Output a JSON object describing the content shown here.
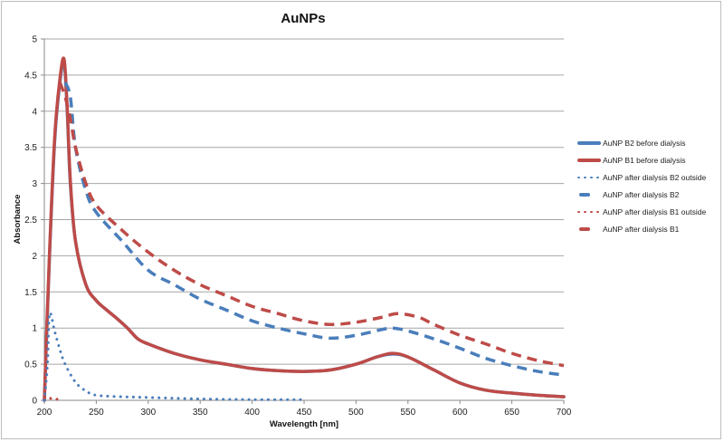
{
  "chart_data": {
    "type": "line",
    "title": "AuNPs",
    "xlabel": "Wavelength [nm]",
    "ylabel": "Absorbance",
    "xlim": [
      200,
      700
    ],
    "ylim": [
      0,
      5
    ],
    "x_ticks": [
      200,
      250,
      300,
      350,
      400,
      450,
      500,
      550,
      600,
      650,
      700
    ],
    "y_ticks": [
      0,
      0.5,
      1,
      1.5,
      2,
      2.5,
      3,
      3.5,
      4,
      4.5,
      5
    ],
    "grid": "horizontal",
    "legend_position": "right",
    "series": [
      {
        "name": "AuNP B2 before dialysis",
        "color": "#4a7ebb",
        "style": "solid",
        "x": [
          200,
          205,
          210,
          215,
          219,
          222,
          225,
          230,
          240,
          250,
          260,
          270,
          280,
          290,
          300,
          325,
          350,
          375,
          400,
          425,
          450,
          475,
          500,
          520,
          535,
          550,
          575,
          600,
          625,
          650,
          675,
          700
        ],
        "y": [
          0,
          2.0,
          3.6,
          4.4,
          4.68,
          4.0,
          3.0,
          2.2,
          1.6,
          1.38,
          1.25,
          1.13,
          1.0,
          0.85,
          0.78,
          0.65,
          0.56,
          0.5,
          0.44,
          0.41,
          0.4,
          0.42,
          0.5,
          0.6,
          0.64,
          0.6,
          0.42,
          0.24,
          0.14,
          0.1,
          0.07,
          0.05
        ]
      },
      {
        "name": "AuNP B1 before dialysis",
        "color": "#be4b48",
        "style": "solid",
        "x": [
          200,
          205,
          210,
          215,
          219,
          222,
          225,
          230,
          240,
          250,
          260,
          270,
          280,
          290,
          300,
          325,
          350,
          375,
          400,
          425,
          450,
          475,
          500,
          520,
          535,
          550,
          575,
          600,
          625,
          650,
          675,
          700
        ],
        "y": [
          0,
          2.05,
          3.65,
          4.45,
          4.72,
          4.05,
          3.05,
          2.2,
          1.6,
          1.38,
          1.25,
          1.13,
          1.0,
          0.85,
          0.78,
          0.65,
          0.56,
          0.5,
          0.44,
          0.41,
          0.4,
          0.42,
          0.5,
          0.6,
          0.65,
          0.6,
          0.42,
          0.24,
          0.14,
          0.1,
          0.07,
          0.05
        ]
      },
      {
        "name": "AuNP after dialysis B2 outside",
        "color": "#4a7ebb",
        "style": "dotted",
        "x": [
          200,
          203,
          205,
          210,
          215,
          220,
          230,
          240,
          250,
          275,
          300,
          350,
          400,
          450
        ],
        "y": [
          0,
          0.5,
          1.2,
          0.95,
          0.7,
          0.5,
          0.25,
          0.13,
          0.07,
          0.05,
          0.04,
          0.02,
          0.01,
          0.01
        ]
      },
      {
        "name": "AuNP after dialysis B2",
        "color": "#4a7ebb",
        "style": "dashed",
        "x": [
          220,
          225,
          230,
          240,
          250,
          275,
          300,
          325,
          350,
          375,
          400,
          425,
          450,
          475,
          500,
          525,
          535,
          550,
          575,
          600,
          625,
          650,
          675,
          700
        ],
        "y": [
          4.4,
          4.2,
          3.5,
          2.9,
          2.6,
          2.2,
          1.8,
          1.6,
          1.4,
          1.25,
          1.1,
          1.0,
          0.92,
          0.86,
          0.9,
          0.98,
          1.0,
          0.96,
          0.85,
          0.72,
          0.58,
          0.48,
          0.4,
          0.35
        ]
      },
      {
        "name": "AuNP after dialysis B1 outside",
        "color": "#be4b48",
        "style": "dotted",
        "x": [
          200,
          205,
          210,
          215
        ],
        "y": [
          0.05,
          0.03,
          0.02,
          0.01
        ]
      },
      {
        "name": "AuNP after dialysis B1",
        "color": "#be4b48",
        "style": "dashed",
        "x": [
          215,
          220,
          225,
          230,
          240,
          250,
          275,
          300,
          325,
          350,
          375,
          400,
          425,
          450,
          475,
          500,
          525,
          540,
          560,
          575,
          600,
          625,
          650,
          675,
          700
        ],
        "y": [
          4.4,
          4.2,
          3.9,
          3.5,
          3.0,
          2.7,
          2.35,
          2.05,
          1.8,
          1.6,
          1.45,
          1.3,
          1.2,
          1.1,
          1.05,
          1.08,
          1.15,
          1.2,
          1.15,
          1.05,
          0.9,
          0.78,
          0.65,
          0.55,
          0.48
        ]
      }
    ]
  }
}
